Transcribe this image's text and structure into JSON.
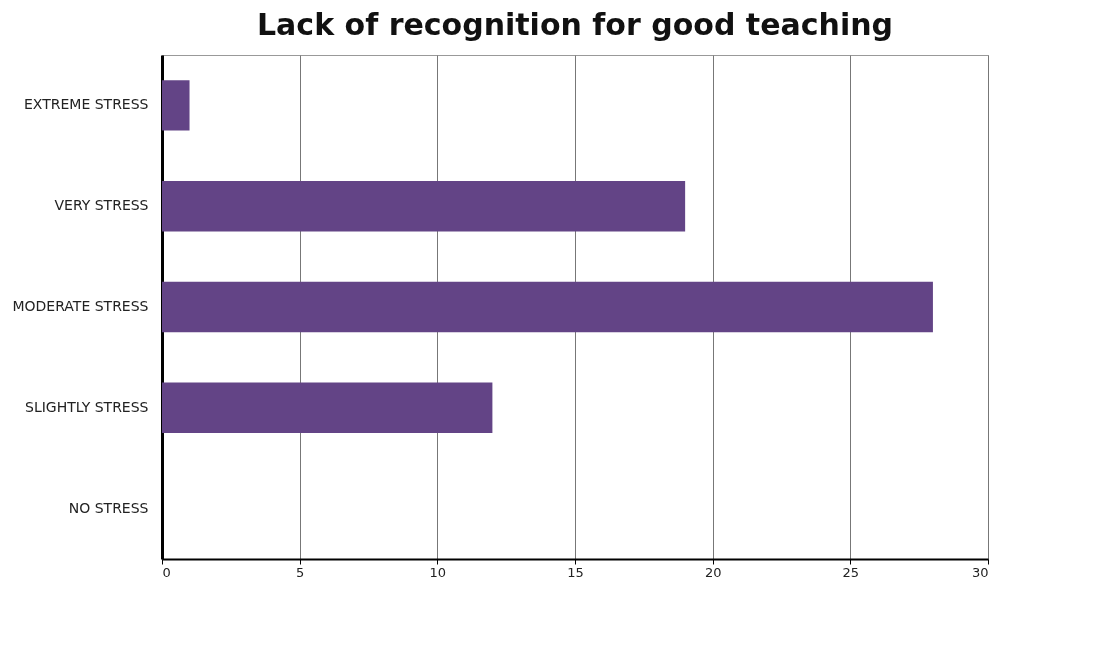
{
  "chart_data": {
    "type": "bar",
    "orientation": "horizontal",
    "title": "Lack of recognition for good teaching",
    "categories": [
      "EXTREME STRESS",
      "VERY STRESS",
      "MODERATE STRESS",
      "SLIGHTLY STRESS",
      "NO STRESS"
    ],
    "values": [
      1,
      19,
      28,
      12,
      0
    ],
    "color": "#634486",
    "xlim": [
      0,
      30
    ],
    "xticks": [
      0,
      5,
      10,
      15,
      20,
      25,
      30
    ],
    "grid": "x"
  }
}
